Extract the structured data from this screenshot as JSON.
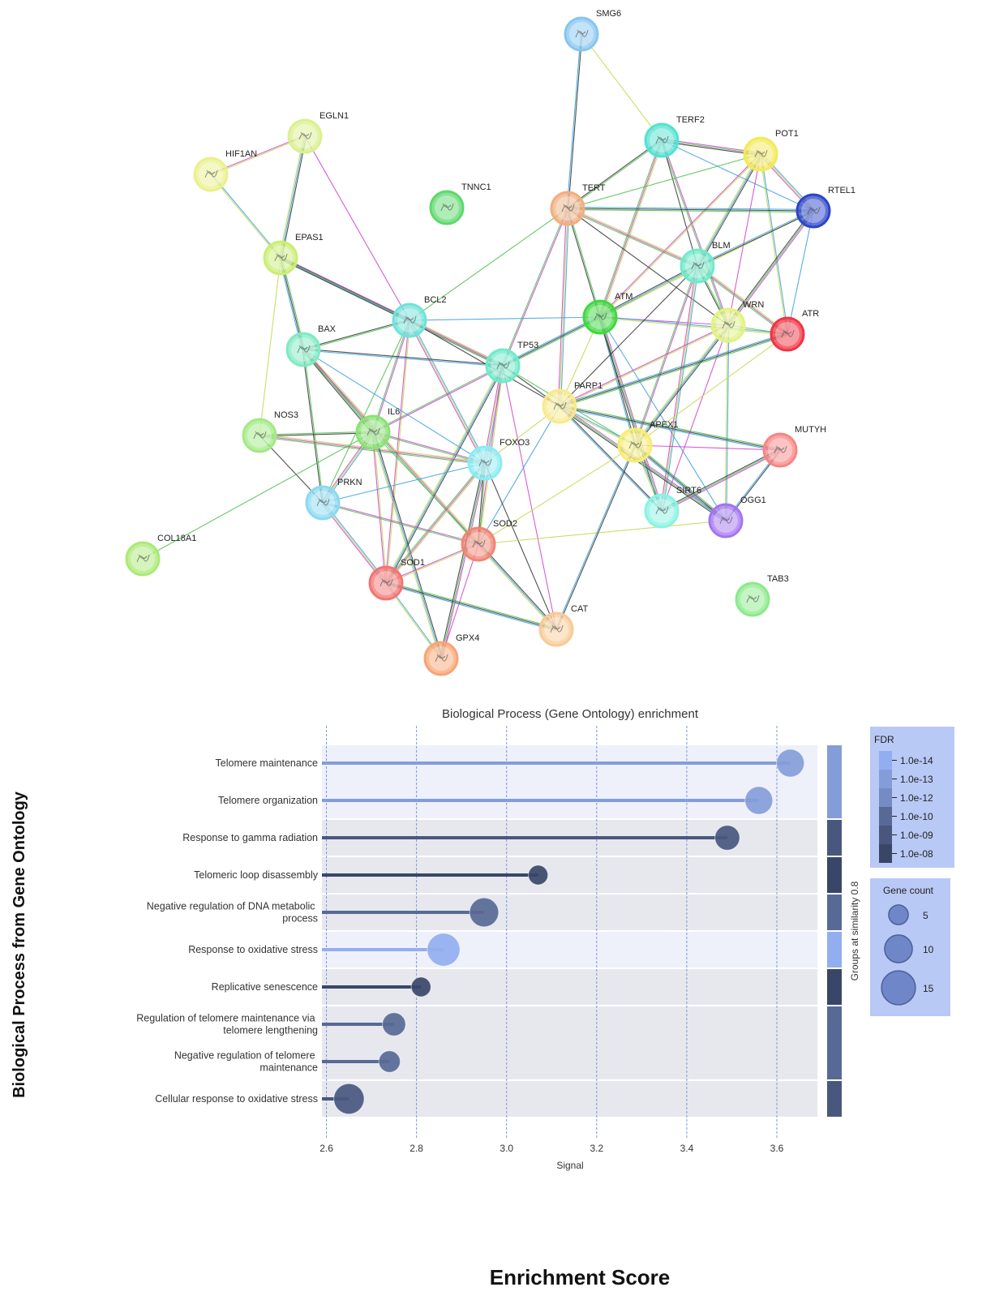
{
  "network": {
    "nodes": [
      {
        "label": "SMG6"
      },
      {
        "label": "TERF2"
      },
      {
        "label": "POT1"
      },
      {
        "label": "RTEL1"
      },
      {
        "label": "TERT"
      },
      {
        "label": "TNNC1"
      },
      {
        "label": "EGLN1"
      },
      {
        "label": "HIF1AN"
      },
      {
        "label": "EPAS1"
      },
      {
        "label": "BCL2"
      },
      {
        "label": "ATM"
      },
      {
        "label": "BLM"
      },
      {
        "label": "WRN"
      },
      {
        "label": "ATR"
      },
      {
        "label": "BAX"
      },
      {
        "label": "TP53"
      },
      {
        "label": "PARP1"
      },
      {
        "label": "NOS3"
      },
      {
        "label": "IL6"
      },
      {
        "label": "APEX1"
      },
      {
        "label": "MUTYH"
      },
      {
        "label": "FOXO3"
      },
      {
        "label": "PRKN"
      },
      {
        "label": "SIRT6"
      },
      {
        "label": "OGG1"
      },
      {
        "label": "COL18A1"
      },
      {
        "label": "SOD2"
      },
      {
        "label": "SOD1"
      },
      {
        "label": "CAT"
      },
      {
        "label": "TAB3"
      },
      {
        "label": "GPX4"
      }
    ]
  },
  "chart_data": {
    "type": "lollipop",
    "title": "Biological Process (Gene Ontology) enrichment",
    "x_label": "Signal",
    "group_label": "Groups at similarity 0.8",
    "categories": [
      "Telomere maintenance",
      "Telomere organization",
      "Response to gamma radiation",
      "Telomeric loop disassembly",
      "Negative regulation of DNA metabolic process",
      "Response to oxidative stress",
      "Replicative senescence",
      "Regulation of telomere maintenance via telomere lengthening",
      "Negative regulation of telomere maintenance",
      "Cellular response to oxidative stress"
    ],
    "values": [
      3.63,
      3.56,
      3.49,
      3.07,
      2.95,
      2.86,
      2.81,
      2.75,
      2.74,
      2.65
    ],
    "fdr": [
      1e-13,
      1e-13,
      1e-09,
      1e-08,
      1e-10,
      1e-14,
      1e-08,
      1e-10,
      1e-10,
      1e-09
    ],
    "gene_count": [
      10,
      10,
      8,
      5,
      11,
      14,
      5,
      7,
      6,
      12
    ],
    "xlim": [
      2.59,
      3.69
    ],
    "xticks": [
      2.6,
      2.8,
      {
        "value": 3,
        "label": "3.0"
      },
      3.2,
      3.4,
      3.6
    ],
    "grid": true,
    "fdr_legend": {
      "title": "FDR",
      "ticks": [
        {
          "value": 1e-14,
          "label": "1.0e-14"
        },
        {
          "value": 1e-13,
          "label": "1.0e-13"
        },
        {
          "value": 1e-12,
          "label": "1.0e-12"
        },
        {
          "value": 1e-10,
          "label": "1.0e-10"
        },
        {
          "value": 1e-09,
          "label": "1.0e-09"
        },
        {
          "value": 1e-08,
          "label": "1.0e-08"
        }
      ]
    },
    "size_legend": {
      "title": "Gene count",
      "values": [
        5,
        10,
        15
      ]
    }
  },
  "figure_labels": {
    "y_title": "Biological Process from Gene Ontology",
    "x_title": "Enrichment Score"
  }
}
